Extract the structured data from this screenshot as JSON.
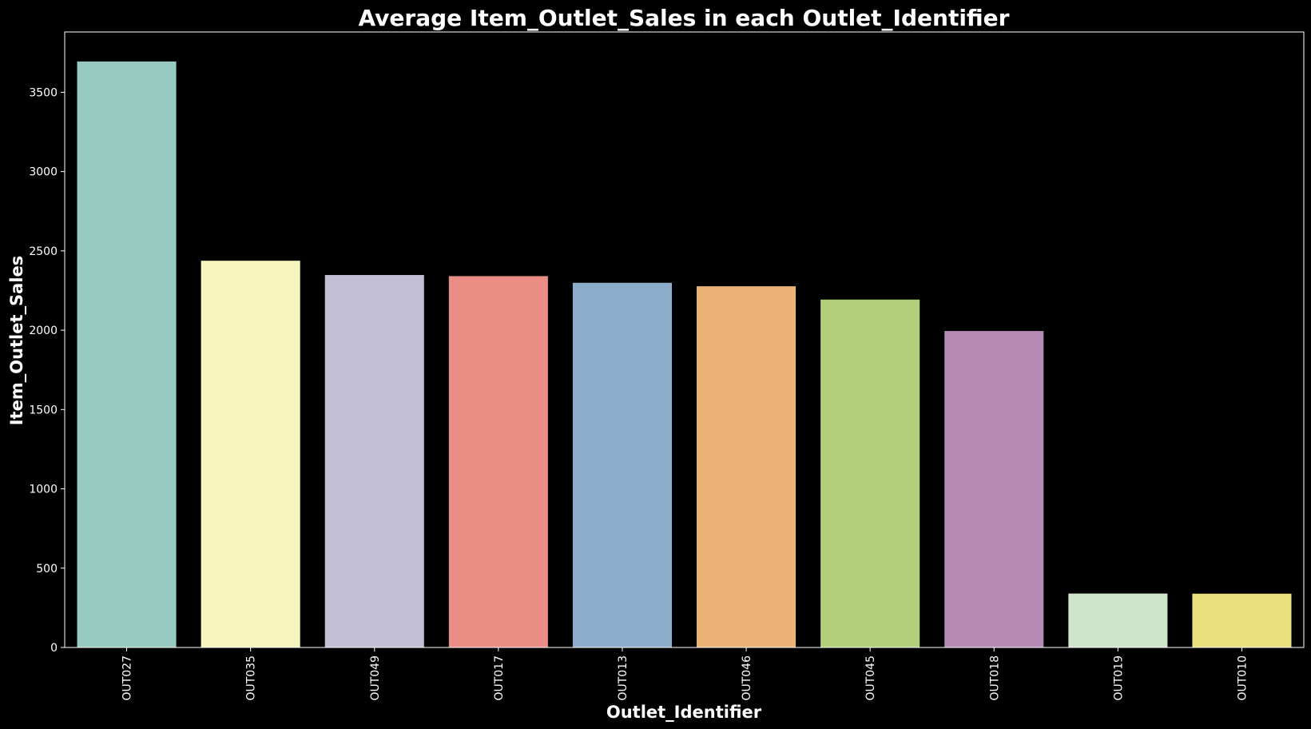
{
  "chart_data": {
    "type": "bar",
    "title": "Average Item_Outlet_Sales in each Outlet_Identifier",
    "xlabel": "Outlet_Identifier",
    "ylabel": "Item_Outlet_Sales",
    "categories": [
      "OUT027",
      "OUT035",
      "OUT049",
      "OUT017",
      "OUT013",
      "OUT046",
      "OUT045",
      "OUT018",
      "OUT019",
      "OUT010"
    ],
    "values": [
      3694,
      2438,
      2348,
      2341,
      2299,
      2277,
      2193,
      1995,
      340,
      339
    ],
    "colors": [
      "#96cac1",
      "#f6f6bc",
      "#c1bed6",
      "#e98d85",
      "#8daecb",
      "#eab375",
      "#b3d07c",
      "#b58bb6",
      "#cfe5c9",
      "#ebdf7e"
    ],
    "ylim": [
      0,
      3880
    ],
    "yticks": [
      0,
      500,
      1000,
      1500,
      2000,
      2500,
      3000,
      3500
    ],
    "grid": false,
    "legend": "none",
    "background": "#000000",
    "foreground": "#ffffff"
  }
}
